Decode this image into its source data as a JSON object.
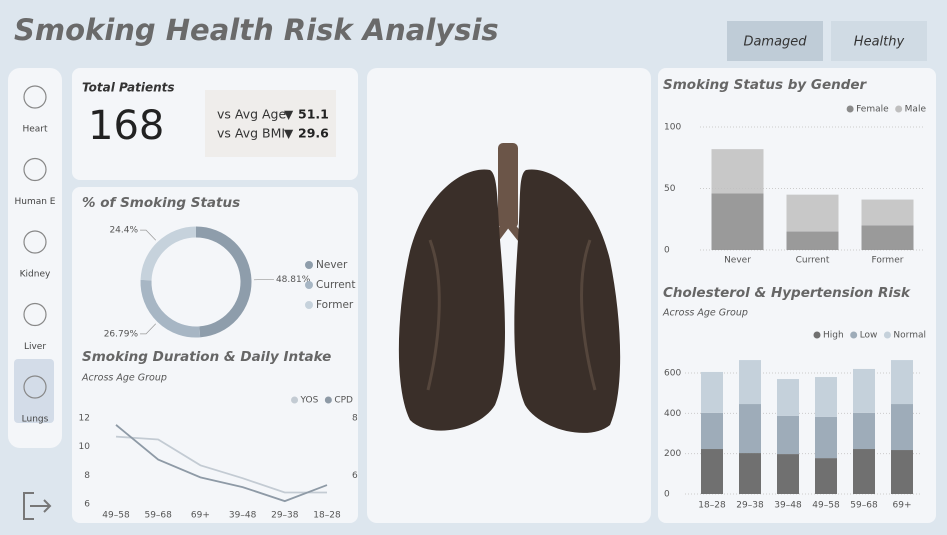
{
  "header": {
    "title": "Smoking Health Risk Analysis",
    "buttons": [
      "Damaged",
      "Healthy"
    ],
    "active": "Damaged"
  },
  "nav": {
    "items": [
      "Heart",
      "Human E",
      "Kidney",
      "Liver",
      "Lungs"
    ],
    "active": "Lungs"
  },
  "kpi": {
    "label": "Total Patients",
    "value": 168,
    "comparisons": [
      {
        "label": "vs Avg Age",
        "indicator": "▼",
        "value": 51.1
      },
      {
        "label": "vs Avg BMI",
        "indicator": "▼",
        "value": 29.6
      }
    ]
  },
  "chart_data": [
    {
      "type": "donut",
      "title": "% of Smoking Status",
      "categories": [
        "Never",
        "Current",
        "Former"
      ],
      "values": [
        48.81,
        26.79,
        24.4
      ],
      "value_labels": [
        "48.81%",
        "26.79%",
        "24.4%"
      ],
      "colors": [
        "#8e9dab",
        "#a7b6c4",
        "#c6d2dc"
      ],
      "legend": "right"
    },
    {
      "type": "line",
      "title": "Smoking Duration & Daily Intake",
      "subtitle": "Across Age Group",
      "categories": [
        "49–58",
        "59–68",
        "69+",
        "39–48",
        "29–38",
        "18–28"
      ],
      "series": [
        {
          "name": "YOS",
          "color": "#c3cbd3",
          "values": [
            10.7,
            10.5,
            8.7,
            7.8,
            6.8,
            6.8
          ]
        },
        {
          "name": "CPD",
          "color": "#8e9aa6",
          "axis": "y2",
          "values": [
            7.76,
            6.55,
            5.93,
            5.59,
            5.1,
            5.66
          ]
        }
      ],
      "ylim": [
        6,
        12
      ],
      "yticks": [
        6,
        8,
        10,
        12
      ],
      "y2lim": [
        5,
        8
      ],
      "y2ticks": [
        6,
        8
      ],
      "legend": "top-right"
    },
    {
      "type": "ribbon",
      "title": "Smoking Status by Gender",
      "categories": [
        "Never",
        "Current",
        "Former"
      ],
      "series": [
        {
          "name": "Female",
          "color": "#8a8a8a",
          "values": [
            46,
            15,
            20
          ]
        },
        {
          "name": "Male",
          "color": "#bfbfbf",
          "values": [
            36,
            30,
            21
          ]
        }
      ],
      "ylim": [
        0,
        100
      ],
      "yticks": [
        0,
        50,
        100
      ],
      "grid": true,
      "legend": "top-right"
    },
    {
      "type": "stacked_bar",
      "title": "Cholesterol & Hypertension Risk",
      "subtitle": "Across Age Group",
      "categories": [
        "18–28",
        "29–38",
        "39–48",
        "49–58",
        "59–68",
        "69+"
      ],
      "series": [
        {
          "name": "High",
          "color": "#707070",
          "values": [
            223,
            203,
            198,
            178,
            223,
            218
          ]
        },
        {
          "name": "Low",
          "color": "#9eacb9",
          "values": [
            179,
            243,
            189,
            204,
            179,
            228
          ]
        },
        {
          "name": "Normal",
          "color": "#c5d1db",
          "values": [
            203,
            218,
            183,
            198,
            218,
            218
          ]
        }
      ],
      "ylim": [
        0,
        700
      ],
      "yticks": [
        0,
        200,
        400,
        600
      ],
      "grid": true,
      "legend": "top-right"
    }
  ]
}
